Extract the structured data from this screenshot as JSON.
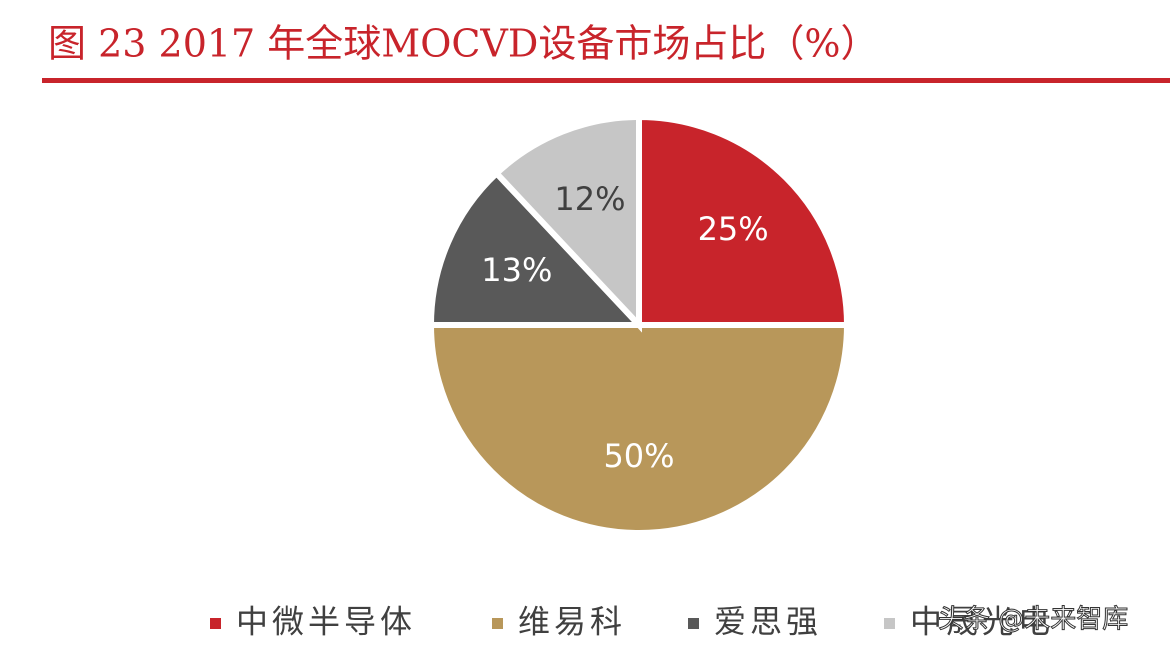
{
  "chart_data": {
    "type": "pie",
    "title": "图 23  2017 年全球MOCVD设备市场占比（%）",
    "categories": [
      "中微半导体",
      "维易科",
      "爱思强",
      "中晟光电"
    ],
    "values": [
      25,
      50,
      13,
      12
    ],
    "value_labels": [
      "25%",
      "50%",
      "13%",
      "12%"
    ],
    "colors": [
      "#c8242b",
      "#b8975a",
      "#595959",
      "#c6c6c6"
    ],
    "legend": "bottom"
  },
  "watermark": "头条 @未来智库"
}
